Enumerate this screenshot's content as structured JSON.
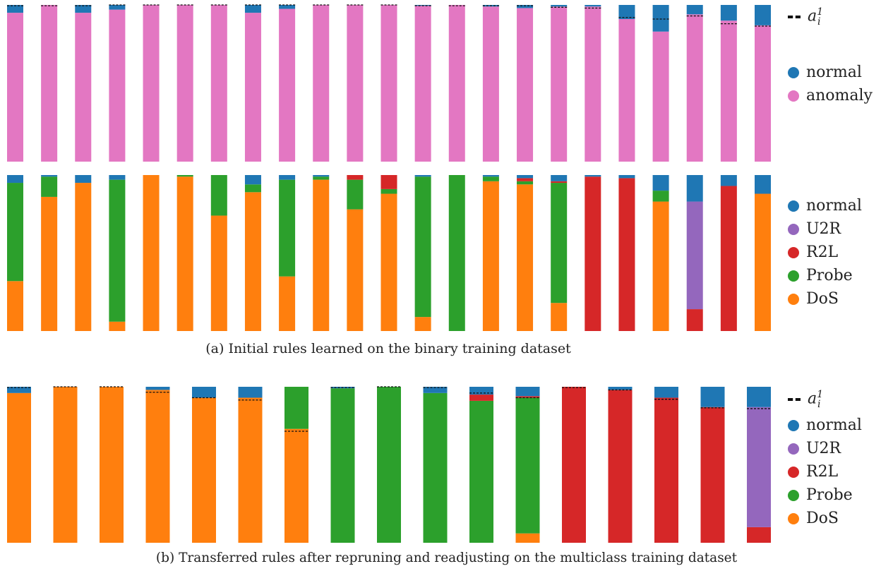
{
  "colors": {
    "normal": "#1f77b4",
    "anomaly": "#e377c2",
    "U2R": "#9467bd",
    "R2L": "#d62728",
    "Probe": "#2ca02c",
    "DoS": "#ff7f0e",
    "threshold": "#111111"
  },
  "legends": {
    "binary": {
      "threshold_base": "a",
      "threshold_sup": "1",
      "threshold_sub": "i",
      "items": [
        "normal",
        "anomaly"
      ]
    },
    "multiclass": {
      "items": [
        "normal",
        "U2R",
        "R2L",
        "Probe",
        "DoS"
      ]
    },
    "transferred": {
      "threshold_base": "a",
      "threshold_sup": "1",
      "threshold_sub": "i",
      "items": [
        "normal",
        "U2R",
        "R2L",
        "Probe",
        "DoS"
      ]
    }
  },
  "captions": {
    "a": "(a) Initial rules learned on the binary training dataset",
    "b": "(b) Transferred rules after repruning and readjusting on the multiclass training dataset"
  },
  "chart_data": [
    {
      "type": "bar",
      "stacked": true,
      "normalized": true,
      "ylim": [
        0,
        1
      ],
      "classes": [
        "anomaly",
        "normal"
      ],
      "bars": [
        {
          "anomaly": 0.95,
          "normal": 0.05,
          "threshold": 0.995
        },
        {
          "anomaly": 1.0,
          "normal": 0.0,
          "threshold": 0.995
        },
        {
          "anomaly": 0.95,
          "normal": 0.05,
          "threshold": 0.995
        },
        {
          "anomaly": 0.97,
          "normal": 0.03,
          "threshold": 1.0
        },
        {
          "anomaly": 1.0,
          "normal": 0.0,
          "threshold": 1.0
        },
        {
          "anomaly": 1.0,
          "normal": 0.0,
          "threshold": 1.0
        },
        {
          "anomaly": 1.0,
          "normal": 0.0,
          "threshold": 1.0
        },
        {
          "anomaly": 0.95,
          "normal": 0.05,
          "threshold": 1.0
        },
        {
          "anomaly": 0.975,
          "normal": 0.025,
          "threshold": 1.0
        },
        {
          "anomaly": 1.0,
          "normal": 0.0,
          "threshold": 1.0
        },
        {
          "anomaly": 1.0,
          "normal": 0.0,
          "threshold": 1.0
        },
        {
          "anomaly": 1.0,
          "normal": 0.0,
          "threshold": 1.0
        },
        {
          "anomaly": 0.995,
          "normal": 0.005,
          "threshold": 0.995
        },
        {
          "anomaly": 1.0,
          "normal": 0.0,
          "threshold": 0.995
        },
        {
          "anomaly": 0.99,
          "normal": 0.01,
          "threshold": 0.995
        },
        {
          "anomaly": 0.98,
          "normal": 0.02,
          "threshold": 0.995
        },
        {
          "anomaly": 0.99,
          "normal": 0.01,
          "threshold": 0.985
        },
        {
          "anomaly": 0.99,
          "normal": 0.01,
          "threshold": 0.98
        },
        {
          "anomaly": 0.91,
          "normal": 0.09,
          "threshold": 0.92
        },
        {
          "anomaly": 0.83,
          "normal": 0.17,
          "threshold": 0.91
        },
        {
          "anomaly": 0.94,
          "normal": 0.06,
          "threshold": 0.93
        },
        {
          "anomaly": 0.9,
          "normal": 0.1,
          "threshold": 0.88
        },
        {
          "anomaly": 0.87,
          "normal": 0.13,
          "threshold": 0.865
        }
      ]
    },
    {
      "type": "bar",
      "stacked": true,
      "normalized": true,
      "ylim": [
        0,
        1
      ],
      "classes": [
        "DoS",
        "Probe",
        "R2L",
        "U2R",
        "normal"
      ],
      "bars": [
        {
          "DoS": 0.32,
          "Probe": 0.63,
          "R2L": 0.0,
          "U2R": 0.0,
          "normal": 0.05
        },
        {
          "DoS": 0.86,
          "Probe": 0.13,
          "R2L": 0.0,
          "U2R": 0.0,
          "normal": 0.01
        },
        {
          "DoS": 0.95,
          "Probe": 0.0,
          "R2L": 0.0,
          "U2R": 0.0,
          "normal": 0.05
        },
        {
          "DoS": 0.06,
          "Probe": 0.91,
          "R2L": 0.0,
          "U2R": 0.0,
          "normal": 0.03
        },
        {
          "DoS": 1.0,
          "Probe": 0.0,
          "R2L": 0.0,
          "U2R": 0.0,
          "normal": 0.0
        },
        {
          "DoS": 0.99,
          "Probe": 0.01,
          "R2L": 0.0,
          "U2R": 0.0,
          "normal": 0.0
        },
        {
          "DoS": 0.74,
          "Probe": 0.26,
          "R2L": 0.0,
          "U2R": 0.0,
          "normal": 0.0
        },
        {
          "DoS": 0.89,
          "Probe": 0.05,
          "R2L": 0.0,
          "U2R": 0.0,
          "normal": 0.06
        },
        {
          "DoS": 0.35,
          "Probe": 0.62,
          "R2L": 0.0,
          "U2R": 0.0,
          "normal": 0.03
        },
        {
          "DoS": 0.97,
          "Probe": 0.02,
          "R2L": 0.0,
          "U2R": 0.0,
          "normal": 0.01
        },
        {
          "DoS": 0.78,
          "Probe": 0.19,
          "R2L": 0.03,
          "U2R": 0.0,
          "normal": 0.0
        },
        {
          "DoS": 0.88,
          "Probe": 0.03,
          "R2L": 0.09,
          "U2R": 0.0,
          "normal": 0.0
        },
        {
          "DoS": 0.09,
          "Probe": 0.9,
          "R2L": 0.0,
          "U2R": 0.0,
          "normal": 0.01
        },
        {
          "DoS": 0.0,
          "Probe": 1.0,
          "R2L": 0.0,
          "U2R": 0.0,
          "normal": 0.0
        },
        {
          "DoS": 0.96,
          "Probe": 0.03,
          "R2L": 0.0,
          "U2R": 0.0,
          "normal": 0.01
        },
        {
          "DoS": 0.94,
          "Probe": 0.02,
          "R2L": 0.02,
          "U2R": 0.0,
          "normal": 0.02
        },
        {
          "DoS": 0.18,
          "Probe": 0.77,
          "R2L": 0.01,
          "U2R": 0.0,
          "normal": 0.04
        },
        {
          "DoS": 0.0,
          "Probe": 0.0,
          "R2L": 0.99,
          "U2R": 0.0,
          "normal": 0.01
        },
        {
          "DoS": 0.0,
          "Probe": 0.0,
          "R2L": 0.98,
          "U2R": 0.0,
          "normal": 0.02
        },
        {
          "DoS": 0.83,
          "Probe": 0.07,
          "R2L": 0.0,
          "U2R": 0.0,
          "normal": 0.1
        },
        {
          "DoS": 0.0,
          "Probe": 0.0,
          "R2L": 0.14,
          "U2R": 0.69,
          "normal": 0.17
        },
        {
          "DoS": 0.0,
          "Probe": 0.0,
          "R2L": 0.93,
          "U2R": 0.0,
          "normal": 0.07
        },
        {
          "DoS": 0.88,
          "Probe": 0.0,
          "R2L": 0.0,
          "U2R": 0.0,
          "normal": 0.12
        }
      ]
    },
    {
      "type": "bar",
      "stacked": true,
      "normalized": true,
      "ylim": [
        0,
        1
      ],
      "classes": [
        "DoS",
        "Probe",
        "R2L",
        "U2R",
        "normal"
      ],
      "bars": [
        {
          "DoS": 0.96,
          "Probe": 0.0,
          "R2L": 0.0,
          "U2R": 0.0,
          "normal": 0.04,
          "threshold": 0.995
        },
        {
          "DoS": 1.0,
          "Probe": 0.0,
          "R2L": 0.0,
          "U2R": 0.0,
          "normal": 0.0,
          "threshold": 1.0
        },
        {
          "DoS": 1.0,
          "Probe": 0.0,
          "R2L": 0.0,
          "U2R": 0.0,
          "normal": 0.0,
          "threshold": 1.0
        },
        {
          "DoS": 0.98,
          "Probe": 0.0,
          "R2L": 0.0,
          "U2R": 0.0,
          "normal": 0.02,
          "threshold": 0.965
        },
        {
          "DoS": 0.93,
          "Probe": 0.0,
          "R2L": 0.0,
          "U2R": 0.0,
          "normal": 0.07,
          "threshold": 0.93
        },
        {
          "DoS": 0.93,
          "Probe": 0.0,
          "R2L": 0.0,
          "U2R": 0.0,
          "normal": 0.07,
          "threshold": 0.915
        },
        {
          "DoS": 0.73,
          "Probe": 0.27,
          "R2L": 0.0,
          "U2R": 0.0,
          "normal": 0.0,
          "threshold": 0.715
        },
        {
          "DoS": 0.0,
          "Probe": 0.99,
          "R2L": 0.0,
          "U2R": 0.0,
          "normal": 0.01,
          "threshold": 0.995
        },
        {
          "DoS": 0.0,
          "Probe": 1.0,
          "R2L": 0.0,
          "U2R": 0.0,
          "normal": 0.0,
          "threshold": 1.0
        },
        {
          "DoS": 0.0,
          "Probe": 0.96,
          "R2L": 0.0,
          "U2R": 0.0,
          "normal": 0.04,
          "threshold": 0.995
        },
        {
          "DoS": 0.0,
          "Probe": 0.91,
          "R2L": 0.04,
          "U2R": 0.0,
          "normal": 0.05,
          "threshold": 0.96
        },
        {
          "DoS": 0.06,
          "Probe": 0.87,
          "R2L": 0.01,
          "U2R": 0.0,
          "normal": 0.06,
          "threshold": 0.93
        },
        {
          "DoS": 0.0,
          "Probe": 0.0,
          "R2L": 1.0,
          "U2R": 0.0,
          "normal": 0.0,
          "threshold": 0.995
        },
        {
          "DoS": 0.0,
          "Probe": 0.0,
          "R2L": 0.98,
          "U2R": 0.0,
          "normal": 0.02,
          "threshold": 0.98
        },
        {
          "DoS": 0.0,
          "Probe": 0.0,
          "R2L": 0.93,
          "U2R": 0.0,
          "normal": 0.07,
          "threshold": 0.92
        },
        {
          "DoS": 0.0,
          "Probe": 0.0,
          "R2L": 0.87,
          "U2R": 0.0,
          "normal": 0.13,
          "threshold": 0.865
        },
        {
          "DoS": 0.0,
          "Probe": 0.0,
          "R2L": 0.1,
          "U2R": 0.77,
          "normal": 0.13,
          "threshold": 0.86
        }
      ]
    }
  ]
}
